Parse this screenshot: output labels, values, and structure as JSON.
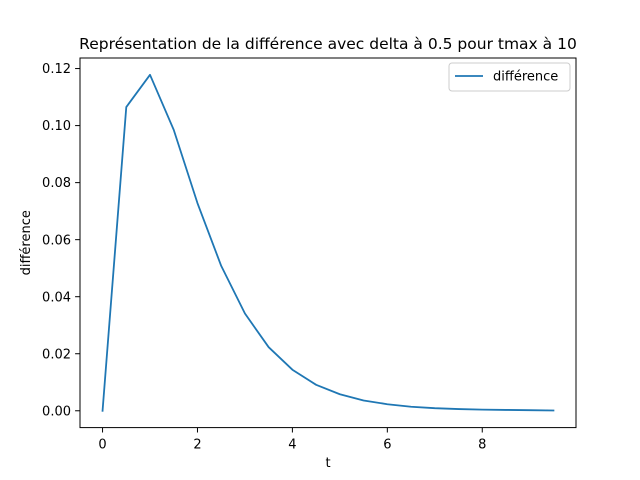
{
  "chart_data": {
    "type": "line",
    "title": "Représentation de la différence avec delta à 0.5 pour tmax à 10",
    "xlabel": "t",
    "ylabel": "différence",
    "xlim": [
      -0.475,
      9.975
    ],
    "ylim": [
      -0.0059,
      0.1237
    ],
    "xticks": [
      0,
      2,
      4,
      6,
      8
    ],
    "yticks": [
      0.0,
      0.02,
      0.04,
      0.06,
      0.08,
      0.1,
      0.12
    ],
    "xtick_labels": [
      "0",
      "2",
      "4",
      "6",
      "8"
    ],
    "ytick_labels": [
      "0.00",
      "0.02",
      "0.04",
      "0.06",
      "0.08",
      "0.10",
      "0.12"
    ],
    "grid": false,
    "legend_position": "top-right",
    "line_color": "#1f77b4",
    "series": [
      {
        "name": "différence",
        "x": [
          0,
          0.5,
          1,
          1.5,
          2,
          2.5,
          3,
          3.5,
          4,
          4.5,
          5,
          5.5,
          6,
          6.5,
          7,
          7.5,
          8,
          8.5,
          9,
          9.5
        ],
        "y": [
          0.0,
          0.1065,
          0.1178,
          0.0985,
          0.0728,
          0.0508,
          0.0341,
          0.0223,
          0.0144,
          0.0091,
          0.0058,
          0.0036,
          0.0023,
          0.0014,
          0.0009,
          0.0006,
          0.0004,
          0.0003,
          0.0002,
          0.0001
        ]
      }
    ]
  }
}
